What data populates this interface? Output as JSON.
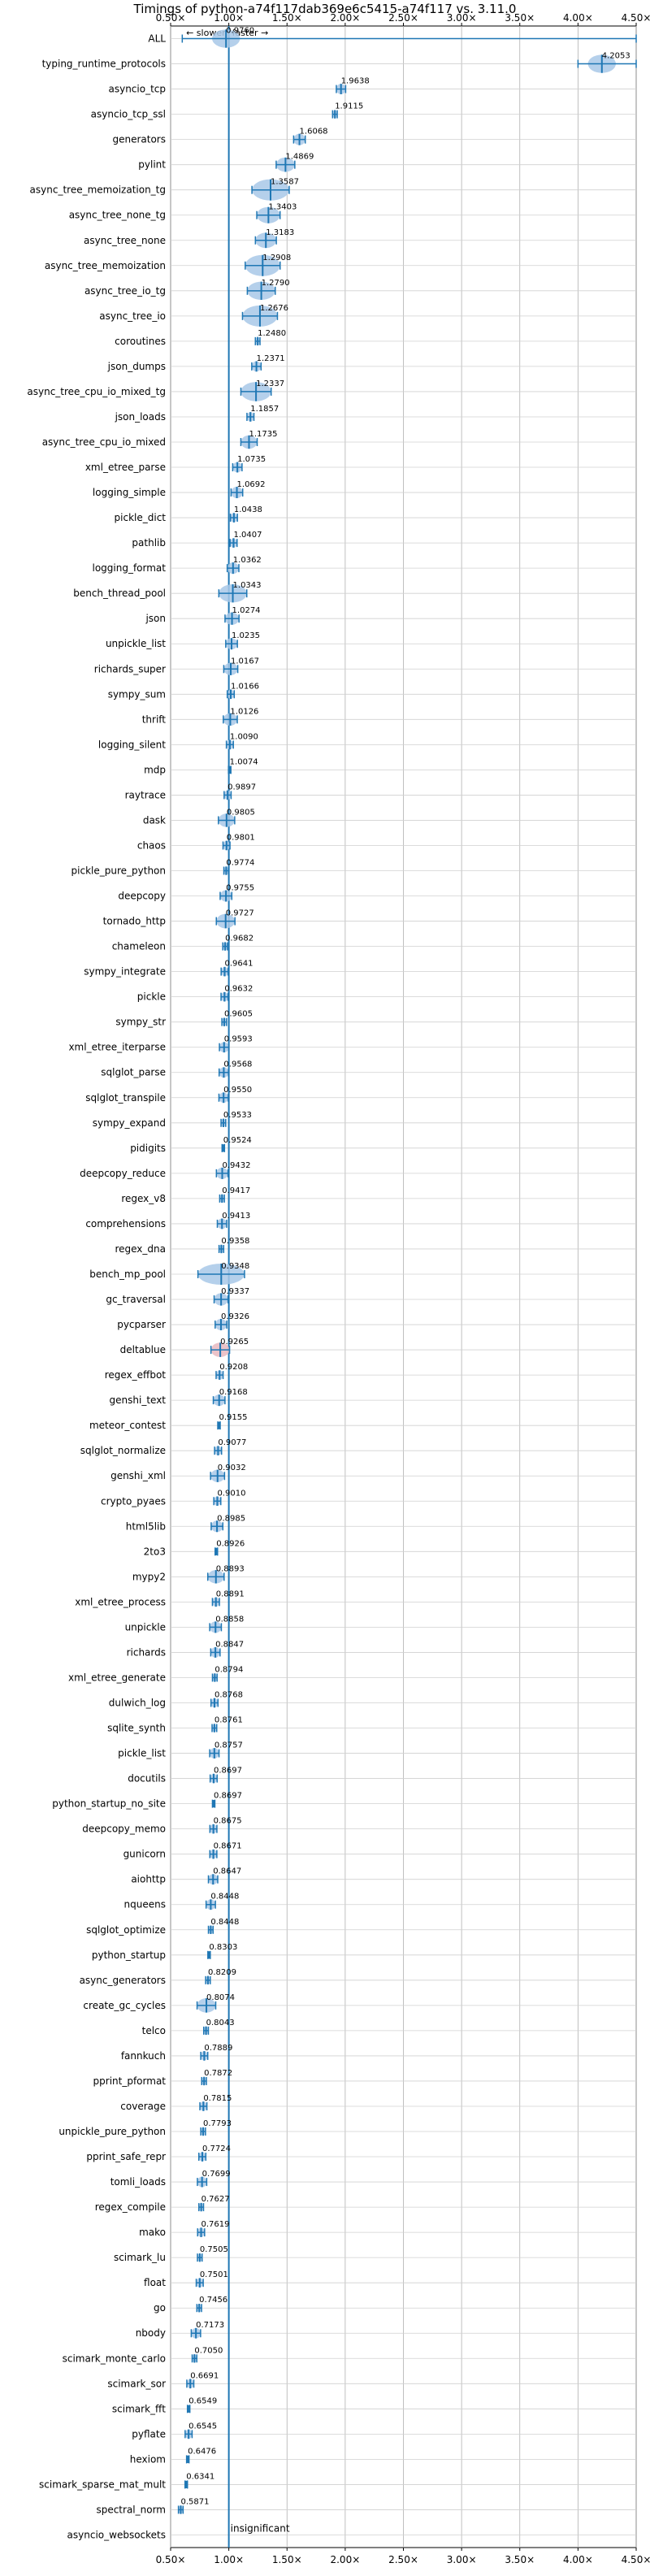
{
  "chart_data": {
    "type": "violin",
    "title": "Timings of python-a74f117dab369e6c5415-a74f117 vs. 3.11.0",
    "xlabel": "",
    "ylabel": "",
    "xlim": [
      0.5,
      4.5
    ],
    "x_ticks": [
      0.5,
      1.0,
      1.5,
      2.0,
      2.5,
      3.0,
      3.5,
      4.0,
      4.5
    ],
    "x_tick_labels": [
      "0.50×",
      "1.00×",
      "1.50×",
      "2.00×",
      "2.50×",
      "3.00×",
      "3.50×",
      "4.00×",
      "4.50×"
    ],
    "slower_label": "← slower",
    "faster_label": "faster →",
    "reference_line": 1.0,
    "grid": true,
    "colors": {
      "violin": "#a8c8e8",
      "median": "#1f77b4",
      "axis": "#1f77b4",
      "outlier": "#e07070"
    },
    "annotation": "insignificant",
    "benchmarks": [
      {
        "name": "ALL",
        "value": "0.9760",
        "ratio": 0.976,
        "spread": 0.12,
        "lo": 0.6,
        "hi": 4.5
      },
      {
        "name": "typing_runtime_protocols",
        "value": "4.2053",
        "ratio": 4.2053,
        "spread": 0.12,
        "lo": 4.0,
        "hi": 4.5
      },
      {
        "name": "asyncio_tcp",
        "value": "1.9638",
        "ratio": 1.9638,
        "spread": 0.04
      },
      {
        "name": "asyncio_tcp_ssl",
        "value": "1.9115",
        "ratio": 1.9115,
        "spread": 0.02
      },
      {
        "name": "generators",
        "value": "1.6068",
        "ratio": 1.6068,
        "spread": 0.05
      },
      {
        "name": "pylint",
        "value": "1.4869",
        "ratio": 1.4869,
        "spread": 0.08
      },
      {
        "name": "async_tree_memoization_tg",
        "value": "1.3587",
        "ratio": 1.3587,
        "spread": 0.16
      },
      {
        "name": "async_tree_none_tg",
        "value": "1.3403",
        "ratio": 1.3403,
        "spread": 0.1
      },
      {
        "name": "async_tree_none",
        "value": "1.3183",
        "ratio": 1.3183,
        "spread": 0.09
      },
      {
        "name": "async_tree_memoization",
        "value": "1.2908",
        "ratio": 1.2908,
        "spread": 0.15
      },
      {
        "name": "async_tree_io_tg",
        "value": "1.2790",
        "ratio": 1.279,
        "spread": 0.12
      },
      {
        "name": "async_tree_io",
        "value": "1.2676",
        "ratio": 1.2676,
        "spread": 0.15
      },
      {
        "name": "coroutines",
        "value": "1.2480",
        "ratio": 1.248,
        "spread": 0.02
      },
      {
        "name": "json_dumps",
        "value": "1.2371",
        "ratio": 1.2371,
        "spread": 0.04
      },
      {
        "name": "async_tree_cpu_io_mixed_tg",
        "value": "1.2337",
        "ratio": 1.2337,
        "spread": 0.13
      },
      {
        "name": "json_loads",
        "value": "1.1857",
        "ratio": 1.1857,
        "spread": 0.03
      },
      {
        "name": "async_tree_cpu_io_mixed",
        "value": "1.1735",
        "ratio": 1.1735,
        "spread": 0.07
      },
      {
        "name": "xml_etree_parse",
        "value": "1.0735",
        "ratio": 1.0735,
        "spread": 0.04
      },
      {
        "name": "logging_simple",
        "value": "1.0692",
        "ratio": 1.0692,
        "spread": 0.05
      },
      {
        "name": "pickle_dict",
        "value": "1.0438",
        "ratio": 1.0438,
        "spread": 0.03
      },
      {
        "name": "pathlib",
        "value": "1.0407",
        "ratio": 1.0407,
        "spread": 0.03
      },
      {
        "name": "logging_format",
        "value": "1.0362",
        "ratio": 1.0362,
        "spread": 0.05
      },
      {
        "name": "bench_thread_pool",
        "value": "1.0343",
        "ratio": 1.0343,
        "spread": 0.12
      },
      {
        "name": "json",
        "value": "1.0274",
        "ratio": 1.0274,
        "spread": 0.06
      },
      {
        "name": "unpickle_list",
        "value": "1.0235",
        "ratio": 1.0235,
        "spread": 0.05
      },
      {
        "name": "richards_super",
        "value": "1.0167",
        "ratio": 1.0167,
        "spread": 0.06
      },
      {
        "name": "sympy_sum",
        "value": "1.0166",
        "ratio": 1.0166,
        "spread": 0.03
      },
      {
        "name": "thrift",
        "value": "1.0126",
        "ratio": 1.0126,
        "spread": 0.06
      },
      {
        "name": "logging_silent",
        "value": "1.0090",
        "ratio": 1.009,
        "spread": 0.03
      },
      {
        "name": "mdp",
        "value": "1.0074",
        "ratio": 1.0074,
        "spread": 0.01
      },
      {
        "name": "raytrace",
        "value": "0.9897",
        "ratio": 0.9897,
        "spread": 0.03
      },
      {
        "name": "dask",
        "value": "0.9805",
        "ratio": 0.9805,
        "spread": 0.07
      },
      {
        "name": "chaos",
        "value": "0.9801",
        "ratio": 0.9801,
        "spread": 0.03
      },
      {
        "name": "pickle_pure_python",
        "value": "0.9774",
        "ratio": 0.9774,
        "spread": 0.02
      },
      {
        "name": "deepcopy",
        "value": "0.9755",
        "ratio": 0.9755,
        "spread": 0.05
      },
      {
        "name": "tornado_http",
        "value": "0.9727",
        "ratio": 0.9727,
        "spread": 0.08
      },
      {
        "name": "chameleon",
        "value": "0.9682",
        "ratio": 0.9682,
        "spread": 0.02
      },
      {
        "name": "sympy_integrate",
        "value": "0.9641",
        "ratio": 0.9641,
        "spread": 0.03
      },
      {
        "name": "pickle",
        "value": "0.9632",
        "ratio": 0.9632,
        "spread": 0.03
      },
      {
        "name": "sympy_str",
        "value": "0.9605",
        "ratio": 0.9605,
        "spread": 0.02
      },
      {
        "name": "xml_etree_iterparse",
        "value": "0.9593",
        "ratio": 0.9593,
        "spread": 0.04
      },
      {
        "name": "sqlglot_parse",
        "value": "0.9568",
        "ratio": 0.9568,
        "spread": 0.04
      },
      {
        "name": "sqlglot_transpile",
        "value": "0.9550",
        "ratio": 0.955,
        "spread": 0.04
      },
      {
        "name": "sympy_expand",
        "value": "0.9533",
        "ratio": 0.9533,
        "spread": 0.02
      },
      {
        "name": "pidigits",
        "value": "0.9524",
        "ratio": 0.9524,
        "spread": 0.01
      },
      {
        "name": "deepcopy_reduce",
        "value": "0.9432",
        "ratio": 0.9432,
        "spread": 0.05
      },
      {
        "name": "regex_v8",
        "value": "0.9417",
        "ratio": 0.9417,
        "spread": 0.02
      },
      {
        "name": "comprehensions",
        "value": "0.9413",
        "ratio": 0.9413,
        "spread": 0.04
      },
      {
        "name": "regex_dna",
        "value": "0.9358",
        "ratio": 0.9358,
        "spread": 0.02
      },
      {
        "name": "bench_mp_pool",
        "value": "0.9348",
        "ratio": 0.9348,
        "spread": 0.2
      },
      {
        "name": "gc_traversal",
        "value": "0.9337",
        "ratio": 0.9337,
        "spread": 0.06
      },
      {
        "name": "pycparser",
        "value": "0.9326",
        "ratio": 0.9326,
        "spread": 0.05
      },
      {
        "name": "deltablue",
        "value": "0.9265",
        "ratio": 0.9265,
        "spread": 0.08,
        "outlier": true
      },
      {
        "name": "regex_effbot",
        "value": "0.9208",
        "ratio": 0.9208,
        "spread": 0.03
      },
      {
        "name": "genshi_text",
        "value": "0.9168",
        "ratio": 0.9168,
        "spread": 0.05
      },
      {
        "name": "meteor_contest",
        "value": "0.9155",
        "ratio": 0.9155,
        "spread": 0.01
      },
      {
        "name": "sqlglot_normalize",
        "value": "0.9077",
        "ratio": 0.9077,
        "spread": 0.03
      },
      {
        "name": "genshi_xml",
        "value": "0.9032",
        "ratio": 0.9032,
        "spread": 0.06
      },
      {
        "name": "crypto_pyaes",
        "value": "0.9010",
        "ratio": 0.901,
        "spread": 0.03
      },
      {
        "name": "html5lib",
        "value": "0.8985",
        "ratio": 0.8985,
        "spread": 0.05
      },
      {
        "name": "2to3",
        "value": "0.8926",
        "ratio": 0.8926,
        "spread": 0.01
      },
      {
        "name": "mypy2",
        "value": "0.8893",
        "ratio": 0.8893,
        "spread": 0.07
      },
      {
        "name": "xml_etree_process",
        "value": "0.8891",
        "ratio": 0.8891,
        "spread": 0.03
      },
      {
        "name": "unpickle",
        "value": "0.8858",
        "ratio": 0.8858,
        "spread": 0.05
      },
      {
        "name": "richards",
        "value": "0.8847",
        "ratio": 0.8847,
        "spread": 0.04
      },
      {
        "name": "xml_etree_generate",
        "value": "0.8794",
        "ratio": 0.8794,
        "spread": 0.02
      },
      {
        "name": "dulwich_log",
        "value": "0.8768",
        "ratio": 0.8768,
        "spread": 0.03
      },
      {
        "name": "sqlite_synth",
        "value": "0.8761",
        "ratio": 0.8761,
        "spread": 0.02
      },
      {
        "name": "pickle_list",
        "value": "0.8757",
        "ratio": 0.8757,
        "spread": 0.04
      },
      {
        "name": "docutils",
        "value": "0.8697",
        "ratio": 0.8697,
        "spread": 0.03
      },
      {
        "name": "python_startup_no_site",
        "value": "0.8697",
        "ratio": 0.8697,
        "spread": 0.01
      },
      {
        "name": "deepcopy_memo",
        "value": "0.8675",
        "ratio": 0.8675,
        "spread": 0.03
      },
      {
        "name": "gunicorn",
        "value": "0.8671",
        "ratio": 0.8671,
        "spread": 0.03
      },
      {
        "name": "aiohttp",
        "value": "0.8647",
        "ratio": 0.8647,
        "spread": 0.04
      },
      {
        "name": "nqueens",
        "value": "0.8448",
        "ratio": 0.8448,
        "spread": 0.04
      },
      {
        "name": "sqlglot_optimize",
        "value": "0.8448",
        "ratio": 0.8448,
        "spread": 0.02
      },
      {
        "name": "python_startup",
        "value": "0.8303",
        "ratio": 0.8303,
        "spread": 0.01
      },
      {
        "name": "async_generators",
        "value": "0.8209",
        "ratio": 0.8209,
        "spread": 0.02
      },
      {
        "name": "create_gc_cycles",
        "value": "0.8074",
        "ratio": 0.8074,
        "spread": 0.08
      },
      {
        "name": "telco",
        "value": "0.8043",
        "ratio": 0.8043,
        "spread": 0.02
      },
      {
        "name": "fannkuch",
        "value": "0.7889",
        "ratio": 0.7889,
        "spread": 0.03
      },
      {
        "name": "pprint_pformat",
        "value": "0.7872",
        "ratio": 0.7872,
        "spread": 0.02
      },
      {
        "name": "coverage",
        "value": "0.7815",
        "ratio": 0.7815,
        "spread": 0.03
      },
      {
        "name": "unpickle_pure_python",
        "value": "0.7793",
        "ratio": 0.7793,
        "spread": 0.02
      },
      {
        "name": "pprint_safe_repr",
        "value": "0.7724",
        "ratio": 0.7724,
        "spread": 0.03
      },
      {
        "name": "tomli_loads",
        "value": "0.7699",
        "ratio": 0.7699,
        "spread": 0.04
      },
      {
        "name": "regex_compile",
        "value": "0.7627",
        "ratio": 0.7627,
        "spread": 0.02
      },
      {
        "name": "mako",
        "value": "0.7619",
        "ratio": 0.7619,
        "spread": 0.03
      },
      {
        "name": "scimark_lu",
        "value": "0.7505",
        "ratio": 0.7505,
        "spread": 0.02
      },
      {
        "name": "float",
        "value": "0.7501",
        "ratio": 0.7501,
        "spread": 0.03
      },
      {
        "name": "go",
        "value": "0.7456",
        "ratio": 0.7456,
        "spread": 0.02
      },
      {
        "name": "nbody",
        "value": "0.7173",
        "ratio": 0.7173,
        "spread": 0.04
      },
      {
        "name": "scimark_monte_carlo",
        "value": "0.7050",
        "ratio": 0.705,
        "spread": 0.02
      },
      {
        "name": "scimark_sor",
        "value": "0.6691",
        "ratio": 0.6691,
        "spread": 0.03
      },
      {
        "name": "scimark_fft",
        "value": "0.6549",
        "ratio": 0.6549,
        "spread": 0.01
      },
      {
        "name": "pyflate",
        "value": "0.6545",
        "ratio": 0.6545,
        "spread": 0.03
      },
      {
        "name": "hexiom",
        "value": "0.6476",
        "ratio": 0.6476,
        "spread": 0.01
      },
      {
        "name": "scimark_sparse_mat_mult",
        "value": "0.6341",
        "ratio": 0.6341,
        "spread": 0.01
      },
      {
        "name": "spectral_norm",
        "value": "0.5871",
        "ratio": 0.5871,
        "spread": 0.02
      },
      {
        "name": "asyncio_websockets",
        "value": "",
        "ratio": null,
        "spread": 0
      }
    ]
  }
}
